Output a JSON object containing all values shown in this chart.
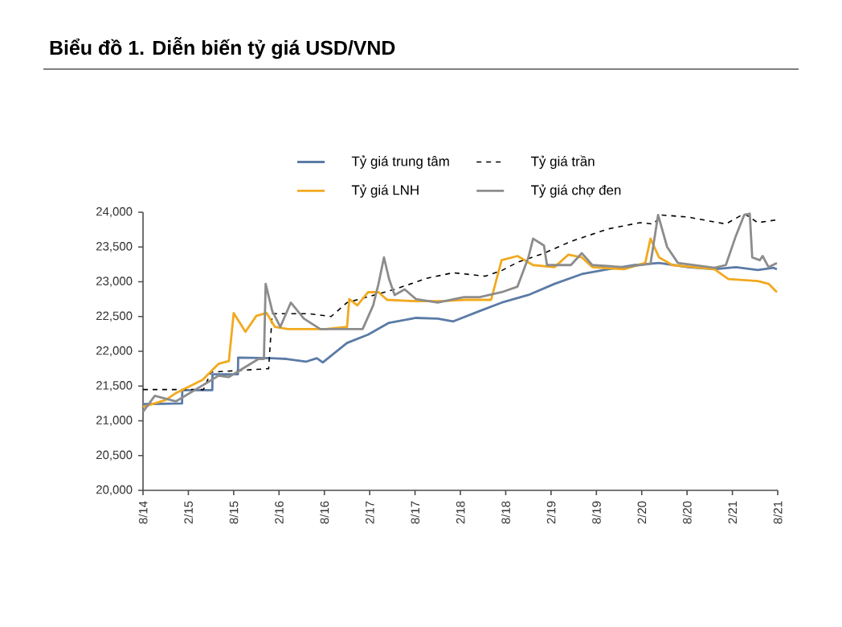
{
  "chart_data": {
    "type": "line",
    "title": "Biểu đồ 1. Diễn biến tỷ giá USD/VND",
    "xlim": [
      "2014-08",
      "2021-08"
    ],
    "xticks": [
      {
        "value": "2014-08",
        "label": "8/14"
      },
      {
        "value": "2015-02",
        "label": "2/15"
      },
      {
        "value": "2015-08",
        "label": "8/15"
      },
      {
        "value": "2016-02",
        "label": "2/16"
      },
      {
        "value": "2016-08",
        "label": "8/16"
      },
      {
        "value": "2017-02",
        "label": "2/17"
      },
      {
        "value": "2017-08",
        "label": "8/17"
      },
      {
        "value": "2018-02",
        "label": "2/18"
      },
      {
        "value": "2018-08",
        "label": "8/18"
      },
      {
        "value": "2019-02",
        "label": "2/19"
      },
      {
        "value": "2019-08",
        "label": "8/19"
      },
      {
        "value": "2020-02",
        "label": "2/20"
      },
      {
        "value": "2020-08",
        "label": "8/20"
      },
      {
        "value": "2021-02",
        "label": "2/21"
      },
      {
        "value": "2021-08",
        "label": "8/21"
      }
    ],
    "ylim": [
      20000,
      24000
    ],
    "yticks": [
      {
        "value": 20000,
        "label": "20,000"
      },
      {
        "value": 20500,
        "label": "20,500"
      },
      {
        "value": 21000,
        "label": "21,000"
      },
      {
        "value": 21500,
        "label": "21,500"
      },
      {
        "value": 22000,
        "label": "22,000"
      },
      {
        "value": 22500,
        "label": "22,500"
      },
      {
        "value": 23000,
        "label": "23,000"
      },
      {
        "value": 23500,
        "label": "23,500"
      },
      {
        "value": 24000,
        "label": "24,000"
      }
    ],
    "legend": "top",
    "series": [
      {
        "name": "Tỷ giá trung tâm",
        "color": "#5b7ba6",
        "line_style": "solid",
        "x": [
          "2014-08-01",
          "2015-01-06",
          "2015-01-07",
          "2015-05-06",
          "2015-05-07",
          "2015-08-18",
          "2015-08-19",
          "2016-01",
          "2016-03",
          "2016-05-18",
          "2016-07-01",
          "2016-07-25",
          "2016-11",
          "2017-01-25",
          "2017-04-18",
          "2017-08-05",
          "2017-11",
          "2018-01-03",
          "2018-04-18",
          "2018-07-15",
          "2018-11",
          "2019-02-15",
          "2019-06-03",
          "2019-09-18",
          "2020-01-03",
          "2020-04-10",
          "2020-08-05",
          "2020-11-20",
          "2021-02-15",
          "2021-05-12",
          "2021-07-15",
          "2021-07-28"
        ],
        "values": [
          21240,
          21250,
          21440,
          21440,
          21670,
          21670,
          21910,
          21900,
          21890,
          21850,
          21900,
          21840,
          22120,
          22240,
          22410,
          22480,
          22470,
          22430,
          22580,
          22700,
          22810,
          22970,
          23110,
          23180,
          23240,
          23270,
          23210,
          23180,
          23210,
          23170,
          23200,
          23180
        ]
      },
      {
        "name": "Tỷ giá trần",
        "color": "#000000",
        "line_style": "dashed",
        "x": [
          "2014-08-01",
          "2015-04",
          "2015-05",
          "2015-12-20",
          "2016-01-04",
          "2016-06",
          "2016-08-28",
          "2016-11",
          "2017-05-10",
          "2017-09-18",
          "2018-01-03",
          "2018-05-10",
          "2018-07-15",
          "2018-09-18",
          "2019-01-03",
          "2019-04-20",
          "2019-09-18",
          "2020-01-25",
          "2020-03-18",
          "2020-04-20",
          "2020-08-05",
          "2021-01-05",
          "2021-03-18",
          "2021-05-12",
          "2021-07-28"
        ],
        "values": [
          21450,
          21450,
          21700,
          21750,
          22540,
          22540,
          22500,
          22700,
          22890,
          23050,
          23130,
          23080,
          23160,
          23280,
          23410,
          23580,
          23760,
          23850,
          23830,
          23960,
          23930,
          23830,
          23980,
          23850,
          23890
        ]
      },
      {
        "name": "Tỷ giá LNH",
        "color": "#f2a91e",
        "line_style": "solid",
        "x": [
          "2014-08-01",
          "2014-11",
          "2014-12-12",
          "2015-03-28",
          "2015-06",
          "2015-07-12",
          "2015-08",
          "2015-09-18",
          "2015-11",
          "2015-12-12",
          "2016-01-15",
          "2016-03-06",
          "2016-06",
          "2016-08-06",
          "2016-11",
          "2016-11-10",
          "2016-12-12",
          "2017-01-25",
          "2017-03-06",
          "2017-04-10",
          "2017-08-05",
          "2017-11-20",
          "2018-02-15",
          "2018-06-03",
          "2018-07-15",
          "2018-09-18",
          "2018-11-20",
          "2019-02-15",
          "2019-04-10",
          "2019-06-03",
          "2019-07-15",
          "2019-11-20",
          "2020-02-15",
          "2020-03-06",
          "2020-04-10",
          "2020-06-03",
          "2020-11-20",
          "2021-01-15",
          "2021-05-12",
          "2021-06-25",
          "2021-07-28"
        ],
        "values": [
          21200,
          21300,
          21400,
          21590,
          21820,
          21860,
          22550,
          22280,
          22510,
          22550,
          22350,
          22320,
          22320,
          22320,
          22350,
          22750,
          22660,
          22850,
          22850,
          22740,
          22720,
          22720,
          22740,
          22740,
          23310,
          23370,
          23240,
          23210,
          23390,
          23350,
          23210,
          23180,
          23270,
          23620,
          23350,
          23240,
          23180,
          23040,
          23010,
          22970,
          22850
        ]
      },
      {
        "name": "Tỷ giá chợ đen",
        "color": "#8c8c8c",
        "line_style": "solid",
        "x": [
          "2014-08-01",
          "2014-09-18",
          "2014-12-12",
          "2015-03-28",
          "2015-06",
          "2015-07-12",
          "2015-11-10",
          "2015-12",
          "2015-12-08",
          "2016-01-04",
          "2016-02-06",
          "2016-03-18",
          "2016-05-10",
          "2016-07-15",
          "2016-11",
          "2017-01-03",
          "2017-02-15",
          "2017-03-06",
          "2017-03-28",
          "2017-04-18",
          "2017-05-10",
          "2017-06-20",
          "2017-08-05",
          "2017-11",
          "2018-02-15",
          "2018-04-18",
          "2018-07-15",
          "2018-09-18",
          "2018-11",
          "2018-11-20",
          "2019-01-03",
          "2019-01-15",
          "2019-04-20",
          "2019-06-03",
          "2019-07-15",
          "2019-11-20",
          "2020-03-06",
          "2020-04-06",
          "2020-05-12",
          "2020-06-25",
          "2020-11-20",
          "2021-01-05",
          "2021-02-15",
          "2021-03-18",
          "2021-04-10",
          "2021-04-20",
          "2021-05-20",
          "2021-06-01",
          "2021-06-25",
          "2021-07-28"
        ],
        "values": [
          21130,
          21360,
          21280,
          21510,
          21650,
          21630,
          21890,
          21890,
          22970,
          22580,
          22350,
          22700,
          22470,
          22320,
          22320,
          22320,
          22660,
          22970,
          23350,
          23040,
          22810,
          22890,
          22750,
          22700,
          22780,
          22780,
          22850,
          22930,
          23350,
          23620,
          23520,
          23240,
          23240,
          23410,
          23240,
          23210,
          23260,
          23960,
          23500,
          23270,
          23200,
          23240,
          23660,
          23960,
          23980,
          23350,
          23310,
          23370,
          23210,
          23270
        ]
      }
    ]
  }
}
